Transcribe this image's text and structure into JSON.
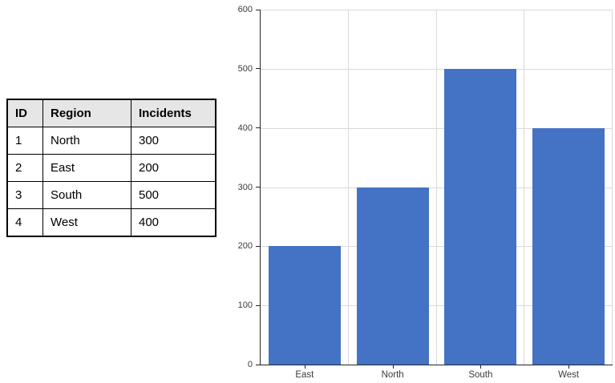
{
  "table": {
    "headers": [
      "ID",
      "Region",
      "Incidents"
    ],
    "rows": [
      [
        "1",
        "North",
        "300"
      ],
      [
        "2",
        "East",
        "200"
      ],
      [
        "3",
        "South",
        "500"
      ],
      [
        "4",
        "West",
        "400"
      ]
    ]
  },
  "chart_data": {
    "type": "bar",
    "categories": [
      "East",
      "North",
      "South",
      "West"
    ],
    "values": [
      200,
      300,
      500,
      400
    ],
    "title": "",
    "xlabel": "",
    "ylabel": "",
    "ylim": [
      0,
      600
    ],
    "yticks": [
      0,
      100,
      200,
      300,
      400,
      500,
      600
    ],
    "grid": "horizontal gridlines plus vertical category separators",
    "legend_position": "none"
  },
  "colors": {
    "bar_fill": "#4472c4",
    "gridline": "#d9d9d9",
    "axis": "#262626",
    "tick_label": "#3b3b3b",
    "table_header_bg": "#e7e6e6",
    "table_border": "#000000"
  }
}
